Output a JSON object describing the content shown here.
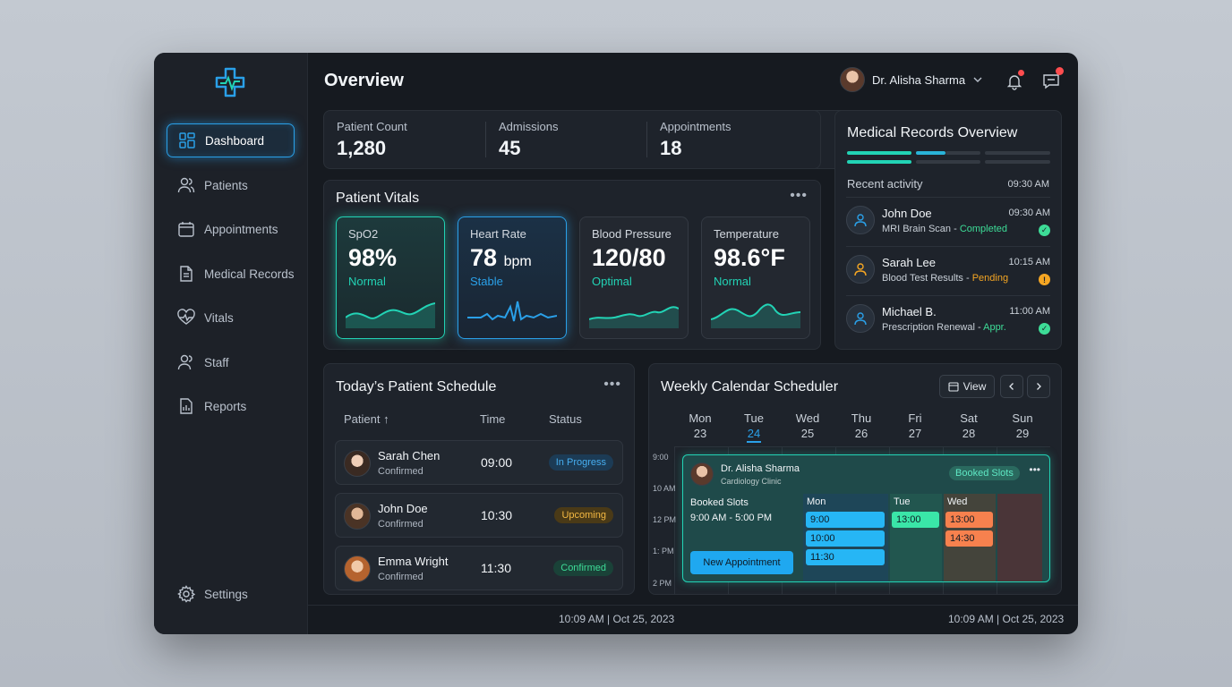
{
  "sidebar": {
    "items": [
      {
        "label": "Dashboard",
        "icon": "grid-icon"
      },
      {
        "label": "Patients",
        "icon": "users-icon"
      },
      {
        "label": "Appointments",
        "icon": "calendar-icon"
      },
      {
        "label": "Medical Records",
        "icon": "file-icon"
      },
      {
        "label": "Vitals",
        "icon": "heart-pulse-icon"
      },
      {
        "label": "Staff",
        "icon": "staff-icon"
      },
      {
        "label": "Reports",
        "icon": "report-icon"
      }
    ],
    "settings_label": "Settings"
  },
  "header": {
    "title": "Overview",
    "user_name": "Dr. Alisha Sharma"
  },
  "stats": [
    {
      "label": "Patient Count",
      "value": "1,280"
    },
    {
      "label": "Admissions",
      "value": "45"
    },
    {
      "label": "Appointments",
      "value": "18"
    }
  ],
  "vitals": {
    "title": "Patient Vitals",
    "items": [
      {
        "label": "SpO2",
        "value": "98%",
        "unit": "",
        "status": "Normal",
        "color": "#22d3b5"
      },
      {
        "label": "Heart Rate",
        "value": "78",
        "unit": "bpm",
        "status": "Stable",
        "color": "#2aa0e8"
      },
      {
        "label": "Blood Pressure",
        "value": "120/80",
        "unit": "",
        "status": "Optimal",
        "color": "#22d3b5"
      },
      {
        "label": "Temperature",
        "value": "98.6°F",
        "unit": "",
        "status": "Normal",
        "color": "#22d3b5"
      }
    ]
  },
  "records": {
    "title": "Medical Records Overview",
    "recent_label": "Recent activity",
    "recent_time": "09:30 AM",
    "items": [
      {
        "name": "John Doe",
        "time": "09:30 AM",
        "desc": "MRI Brain Scan - ",
        "status": "Completed",
        "status_color": "#3ddc97"
      },
      {
        "name": "Sarah Lee",
        "time": "10:15 AM",
        "desc": "Blood Test Results - ",
        "status": "Pending",
        "status_color": "#f5a623"
      },
      {
        "name": "Michael B.",
        "time": "11:00 AM",
        "desc": "Prescription Renewal - ",
        "status": "Appr.",
        "status_color": "#3ddc97"
      }
    ]
  },
  "schedule": {
    "title": "Today’s Patient Schedule",
    "col_patient": "Patient ↑",
    "col_time": "Time",
    "col_status": "Status",
    "rows": [
      {
        "name": "Sarah Chen",
        "sub": "Confirmed",
        "time": "09:00",
        "status": "In Progress"
      },
      {
        "name": "John Doe",
        "sub": "Confirmed",
        "time": "10:30",
        "status": "Upcoming"
      },
      {
        "name": "Emma Wright",
        "sub": "Confirmed",
        "time": "11:30",
        "status": "Confirmed"
      }
    ]
  },
  "calendar": {
    "title": "Weekly Calendar Scheduler",
    "view_label": "View",
    "days": [
      {
        "name": "Mon",
        "date": "23"
      },
      {
        "name": "Tue",
        "date": "24"
      },
      {
        "name": "Wed",
        "date": "25"
      },
      {
        "name": "Thu",
        "date": "26"
      },
      {
        "name": "Fri",
        "date": "27"
      },
      {
        "name": "Sat",
        "date": "28"
      },
      {
        "name": "Sun",
        "date": "29"
      }
    ],
    "hours": [
      "9:00",
      "10 AM",
      "12 PM",
      "1: PM",
      "2 PM"
    ],
    "event": {
      "doctor": "Dr. Alisha Sharma",
      "clinic": "Cardiology Clinic",
      "badge": "Booked Slots",
      "slots_label": "Booked Slots",
      "slots_range": "9:00 AM - 5:00 PM",
      "new_btn": "New Appointment",
      "cols": [
        {
          "day": "Mon",
          "slots": [
            "9:00",
            "10:00",
            "11:30"
          ]
        },
        {
          "day": "Tue",
          "slots": [
            "13:00"
          ]
        },
        {
          "day": "Wed",
          "slots": [
            "13:00",
            "14:30"
          ]
        }
      ]
    }
  },
  "footer": {
    "left": "10:09 AM | Oct 25, 2023",
    "right": "10:09 AM | Oct 25, 2023"
  }
}
